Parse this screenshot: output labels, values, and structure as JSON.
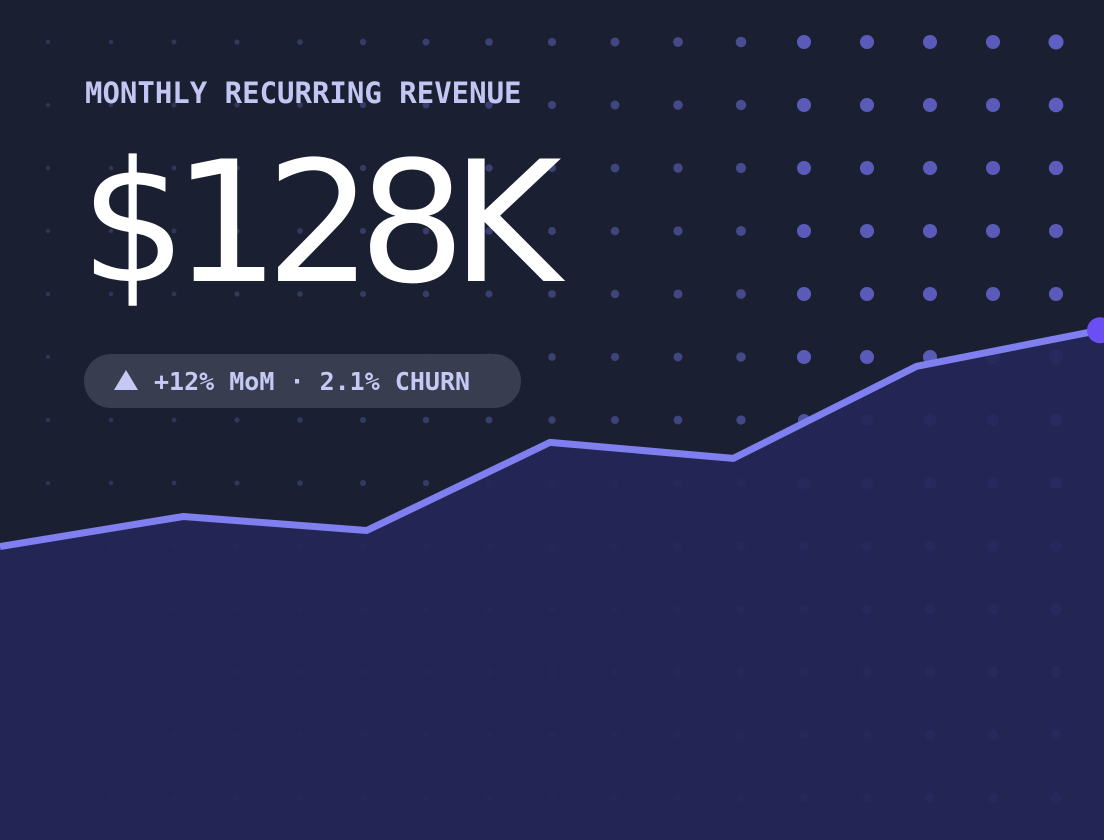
{
  "metric": {
    "label": "MONTHLY RECURRING REVENUE",
    "value": "$128K",
    "badge": "+12% MoM · 2.1% CHURN",
    "badge_icon": "triangle-up-icon"
  },
  "chart_data": {
    "type": "area",
    "x": [
      1,
      2,
      3,
      4,
      5,
      6,
      7
    ],
    "values": [
      100,
      107.5,
      104,
      126,
      122,
      145,
      154
    ],
    "ylim": [
      0,
      200
    ],
    "grid": false,
    "colors": {
      "line": "#7f7ff0",
      "fill": "#252657",
      "end_marker": "#6c4ef5"
    }
  },
  "colors": {
    "background": "#1a2031",
    "dot_accent": "#5f5fc4",
    "text_primary": "#ffffff",
    "text_secondary": "#c3c6f2",
    "pill_bg": "#383e50"
  }
}
